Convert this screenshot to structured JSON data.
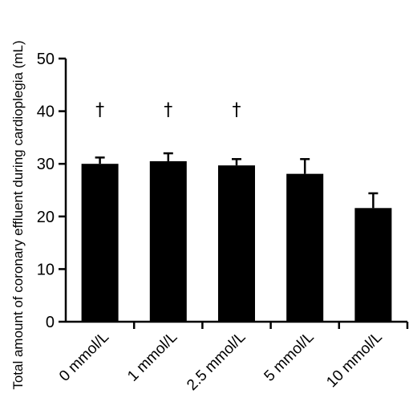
{
  "chart_data": {
    "type": "bar",
    "title": "",
    "xlabel": "",
    "ylabel": "Total amount of coronary effluent during cardioplegia (mL)",
    "categories": [
      "0 mmol/L",
      "1 mmol/L",
      "2.5 mmol/L",
      "5 mmol/L",
      "10 mmol/L"
    ],
    "values": [
      30.0,
      30.5,
      29.7,
      28.1,
      21.6
    ],
    "errors": [
      1.2,
      1.5,
      1.2,
      2.8,
      2.8
    ],
    "markers": [
      "†",
      "†",
      "†",
      "",
      ""
    ],
    "ylim": [
      0,
      50
    ],
    "yticks": [
      0,
      10,
      20,
      30,
      40,
      50
    ],
    "grid": false,
    "bar_color": "#000000"
  }
}
